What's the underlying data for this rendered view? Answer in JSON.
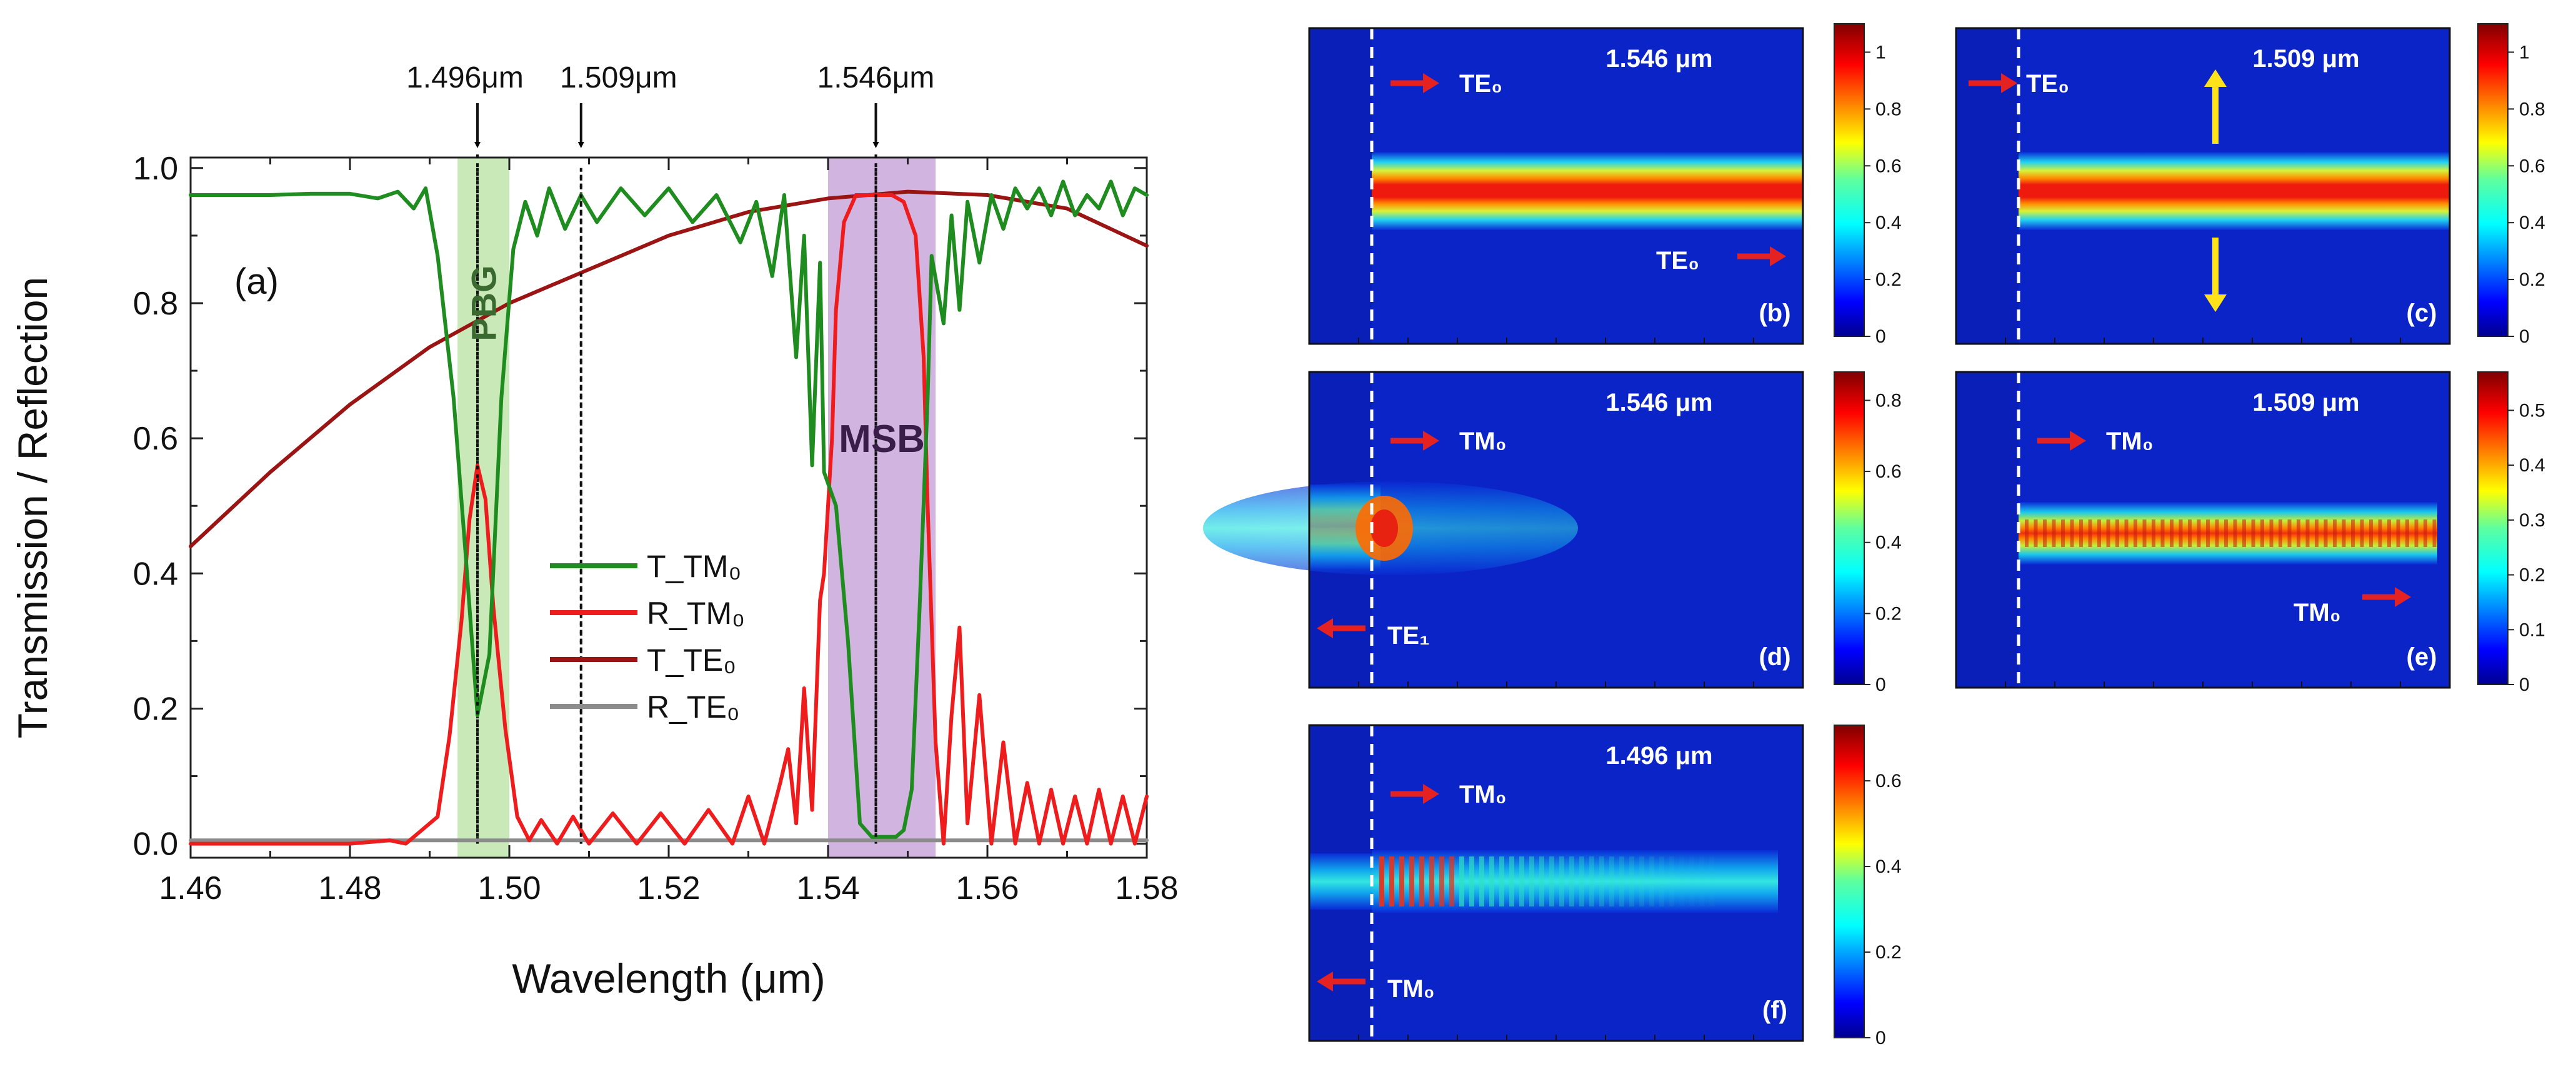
{
  "chart_data": [
    {
      "id": "a",
      "type": "line",
      "panel_label": "(a)",
      "xlabel": "Wavelength (μm)",
      "ylabel": "Transmission / Reflection",
      "xlim": [
        1.46,
        1.58
      ],
      "ylim": [
        0.0,
        1.0
      ],
      "xticks": [
        "1.46",
        "1.48",
        "1.50",
        "1.52",
        "1.54",
        "1.56",
        "1.58"
      ],
      "yticks": [
        "0.0",
        "0.2",
        "0.4",
        "0.6",
        "0.8",
        "1.0"
      ],
      "bands": [
        {
          "name": "PBG",
          "label": "PBG",
          "from": 1.4935,
          "to": 1.5,
          "color": "#bfe5ad"
        },
        {
          "name": "MSB",
          "label": "MSB",
          "from": 1.54,
          "to": 1.5535,
          "color": "#c9a8da"
        }
      ],
      "markers": [
        {
          "label": "1.496μm",
          "x": 1.496
        },
        {
          "label": "1.509μm",
          "x": 1.509
        },
        {
          "label": "1.546μm",
          "x": 1.546
        }
      ],
      "series": [
        {
          "name": "T_TM0",
          "label": "T_TM₀",
          "color": "#1e8c1e",
          "x": [
            1.46,
            1.465,
            1.47,
            1.475,
            1.48,
            1.4835,
            1.486,
            1.488,
            1.4895,
            1.491,
            1.493,
            1.4945,
            1.496,
            1.4975,
            1.499,
            1.5005,
            1.502,
            1.5035,
            1.505,
            1.507,
            1.509,
            1.511,
            1.514,
            1.517,
            1.52,
            1.523,
            1.526,
            1.529,
            1.531,
            1.533,
            1.5345,
            1.536,
            1.537,
            1.538,
            1.539,
            1.5395,
            1.541,
            1.5425,
            1.544,
            1.5455,
            1.547,
            1.5485,
            1.5495,
            1.5505,
            1.5515,
            1.5525,
            1.553,
            1.5545,
            1.5555,
            1.5565,
            1.5575,
            1.559,
            1.5605,
            1.562,
            1.5635,
            1.565,
            1.5665,
            1.568,
            1.5695,
            1.571,
            1.5725,
            1.574,
            1.5755,
            1.577,
            1.5785,
            1.58
          ],
          "y": [
            0.96,
            0.96,
            0.96,
            0.962,
            0.962,
            0.955,
            0.965,
            0.94,
            0.97,
            0.87,
            0.66,
            0.43,
            0.19,
            0.28,
            0.66,
            0.88,
            0.95,
            0.9,
            0.97,
            0.91,
            0.96,
            0.92,
            0.97,
            0.93,
            0.97,
            0.92,
            0.96,
            0.89,
            0.95,
            0.84,
            0.96,
            0.72,
            0.9,
            0.56,
            0.86,
            0.55,
            0.5,
            0.3,
            0.03,
            0.01,
            0.01,
            0.01,
            0.02,
            0.08,
            0.35,
            0.66,
            0.87,
            0.77,
            0.93,
            0.79,
            0.95,
            0.86,
            0.96,
            0.91,
            0.97,
            0.94,
            0.97,
            0.93,
            0.98,
            0.93,
            0.96,
            0.94,
            0.98,
            0.93,
            0.97,
            0.96
          ]
        },
        {
          "name": "R_TM0",
          "label": "R_TM₀",
          "color": "#ee1c1c",
          "x": [
            1.46,
            1.48,
            1.485,
            1.487,
            1.489,
            1.491,
            1.4925,
            1.494,
            1.495,
            1.496,
            1.497,
            1.498,
            1.4995,
            1.501,
            1.5025,
            1.504,
            1.506,
            1.508,
            1.51,
            1.513,
            1.516,
            1.519,
            1.522,
            1.525,
            1.528,
            1.53,
            1.532,
            1.534,
            1.535,
            1.536,
            1.537,
            1.538,
            1.539,
            1.5395,
            1.5405,
            1.541,
            1.542,
            1.5435,
            1.545,
            1.5465,
            1.548,
            1.5495,
            1.551,
            1.552,
            1.5525,
            1.5535,
            1.5545,
            1.5555,
            1.5565,
            1.5575,
            1.559,
            1.5605,
            1.562,
            1.5635,
            1.565,
            1.5665,
            1.568,
            1.5695,
            1.571,
            1.5725,
            1.574,
            1.5755,
            1.577,
            1.5785,
            1.58
          ],
          "y": [
            0.0,
            0.0,
            0.005,
            0.0,
            0.02,
            0.04,
            0.16,
            0.33,
            0.48,
            0.56,
            0.51,
            0.35,
            0.17,
            0.04,
            0.005,
            0.035,
            0.0,
            0.04,
            0.0,
            0.045,
            0.0,
            0.045,
            0.0,
            0.05,
            0.0,
            0.07,
            0.0,
            0.09,
            0.14,
            0.03,
            0.23,
            0.05,
            0.36,
            0.4,
            0.6,
            0.79,
            0.92,
            0.96,
            0.96,
            0.96,
            0.96,
            0.95,
            0.9,
            0.72,
            0.5,
            0.15,
            0.0,
            0.19,
            0.32,
            0.03,
            0.22,
            0.0,
            0.15,
            0.0,
            0.09,
            0.0,
            0.08,
            0.0,
            0.07,
            0.0,
            0.08,
            0.0,
            0.07,
            0.0,
            0.07
          ]
        },
        {
          "name": "T_TE0",
          "label": "T_TE₀",
          "color": "#9a1414",
          "x": [
            1.46,
            1.47,
            1.48,
            1.49,
            1.5,
            1.51,
            1.52,
            1.53,
            1.54,
            1.55,
            1.56,
            1.57,
            1.58
          ],
          "y": [
            0.44,
            0.55,
            0.65,
            0.735,
            0.8,
            0.85,
            0.9,
            0.935,
            0.955,
            0.965,
            0.96,
            0.94,
            0.885
          ]
        },
        {
          "name": "R_TE0",
          "label": "R_TE₀",
          "color": "#8c8c8c",
          "x": [
            1.46,
            1.58
          ],
          "y": [
            0.005,
            0.005
          ]
        }
      ]
    },
    {
      "id": "b",
      "type": "heatmap",
      "panel_label": "(b)",
      "wavelength": "1.546 μm",
      "colorbar": {
        "ticks": [
          "0",
          "0.2",
          "0.4",
          "0.6",
          "0.8",
          "1"
        ],
        "max": 1.1
      },
      "annotations": [
        {
          "text": "TE₀",
          "arrow": "right",
          "color": "#e52222"
        },
        {
          "text": "TE₀",
          "arrow": "right",
          "color": "#e52222"
        }
      ]
    },
    {
      "id": "c",
      "type": "heatmap",
      "panel_label": "(c)",
      "wavelength": "1.509 μm",
      "colorbar": {
        "ticks": [
          "0",
          "0.2",
          "0.4",
          "0.6",
          "0.8",
          "1"
        ],
        "max": 1.1
      },
      "annotations": [
        {
          "text": "TE₀",
          "arrow": "right",
          "color": "#e52222"
        },
        {
          "text": "",
          "arrow": "up",
          "color": "#ffe21a"
        },
        {
          "text": "",
          "arrow": "down",
          "color": "#ffe21a"
        }
      ]
    },
    {
      "id": "d",
      "type": "heatmap",
      "panel_label": "(d)",
      "wavelength": "1.546 μm",
      "colorbar": {
        "ticks": [
          "0",
          "0.2",
          "0.4",
          "0.6",
          "0.8"
        ],
        "max": 0.88
      },
      "annotations": [
        {
          "text": "TM₀",
          "arrow": "right",
          "color": "#e52222"
        },
        {
          "text": "TE₁",
          "arrow": "left",
          "color": "#e52222"
        }
      ]
    },
    {
      "id": "e",
      "type": "heatmap",
      "panel_label": "(e)",
      "wavelength": "1.509 μm",
      "colorbar": {
        "ticks": [
          "0",
          "0.1",
          "0.2",
          "0.3",
          "0.4",
          "0.5"
        ],
        "max": 0.57
      },
      "annotations": [
        {
          "text": "TM₀",
          "arrow": "right",
          "color": "#e52222"
        },
        {
          "text": "TM₀",
          "arrow": "right",
          "color": "#e52222"
        }
      ]
    },
    {
      "id": "f",
      "type": "heatmap",
      "panel_label": "(f)",
      "wavelength": "1.496 μm",
      "colorbar": {
        "ticks": [
          "0",
          "0.2",
          "0.4",
          "0.6"
        ],
        "max": 0.73
      },
      "annotations": [
        {
          "text": "TM₀",
          "arrow": "right",
          "color": "#e52222"
        },
        {
          "text": "TM₀",
          "arrow": "left",
          "color": "#e52222"
        }
      ]
    }
  ]
}
